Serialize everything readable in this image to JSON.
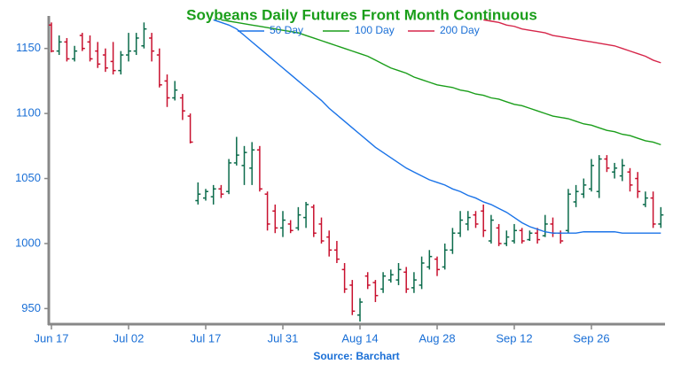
{
  "chart_data": {
    "type": "ohlc",
    "title": "Soybeans Daily Futures Front Month Continuous",
    "source": "Source: Barchart",
    "categories": [
      "Jun 17",
      null,
      null,
      null,
      null,
      null,
      null,
      null,
      null,
      null,
      "Jul 02",
      null,
      null,
      null,
      null,
      null,
      null,
      null,
      null,
      null,
      "Jul 17",
      null,
      null,
      null,
      null,
      null,
      null,
      null,
      null,
      null,
      "Jul 31",
      null,
      null,
      null,
      null,
      null,
      null,
      null,
      null,
      null,
      "Aug 14",
      null,
      null,
      null,
      null,
      null,
      null,
      null,
      null,
      null,
      "Aug 28",
      null,
      null,
      null,
      null,
      null,
      null,
      null,
      null,
      null,
      "Sep 12",
      null,
      null,
      null,
      null,
      null,
      null,
      null,
      null,
      null,
      "Sep 26",
      null,
      null,
      null,
      null,
      null,
      null,
      null,
      null,
      null
    ],
    "open": [
      1168,
      1148,
      1155,
      1142,
      1160,
      1155,
      1148,
      1145,
      1140,
      1133,
      1145,
      1148,
      1152,
      1158,
      1145,
      1125,
      1112,
      1112,
      1098,
      1033,
      1035,
      1036,
      1042,
      1040,
      1062,
      1060,
      1058,
      1072,
      1038,
      1025,
      1012,
      1015,
      1012,
      1020,
      1028,
      1015,
      1005,
      995,
      980,
      968,
      945,
      975,
      970,
      965,
      972,
      972,
      978,
      966,
      968,
      982,
      988,
      982,
      995,
      1008,
      1015,
      1022,
      1025,
      1002,
      1012,
      1000,
      1002,
      1010,
      1003,
      1008,
      1006,
      1015,
      1008,
      1010,
      1032,
      1038,
      1042,
      1040,
      1065,
      1055,
      1052,
      1055,
      1050,
      1030,
      1035,
      1015
    ],
    "high": [
      1170,
      1160,
      1158,
      1152,
      1162,
      1160,
      1155,
      1150,
      1155,
      1148,
      1162,
      1162,
      1170,
      1162,
      1150,
      1130,
      1125,
      1115,
      1100,
      1047,
      1042,
      1045,
      1045,
      1065,
      1082,
      1075,
      1078,
      1075,
      1040,
      1030,
      1025,
      1018,
      1028,
      1032,
      1030,
      1020,
      1010,
      1002,
      985,
      972,
      958,
      978,
      972,
      978,
      980,
      985,
      982,
      978,
      990,
      995,
      990,
      1000,
      1012,
      1025,
      1025,
      1025,
      1030,
      1022,
      1015,
      1010,
      1015,
      1012,
      1010,
      1012,
      1022,
      1020,
      1010,
      1042,
      1045,
      1050,
      1065,
      1068,
      1068,
      1062,
      1065,
      1058,
      1055,
      1040,
      1040,
      1028
    ],
    "low": [
      1147,
      1145,
      1140,
      1140,
      1148,
      1140,
      1135,
      1132,
      1130,
      1130,
      1140,
      1145,
      1150,
      1140,
      1120,
      1105,
      1110,
      1095,
      1077,
      1030,
      1033,
      1030,
      1035,
      1038,
      1060,
      1045,
      1045,
      1040,
      1010,
      1008,
      1005,
      1008,
      1010,
      1012,
      1005,
      1000,
      990,
      985,
      962,
      945,
      940,
      965,
      955,
      962,
      970,
      968,
      962,
      962,
      965,
      980,
      975,
      980,
      992,
      1005,
      1010,
      1012,
      1005,
      1000,
      998,
      998,
      1000,
      1000,
      1002,
      1000,
      1005,
      1005,
      1000,
      1008,
      1028,
      1035,
      1040,
      1035,
      1055,
      1050,
      1048,
      1040,
      1035,
      1028,
      1012,
      1012
    ],
    "close": [
      1148,
      1155,
      1142,
      1148,
      1150,
      1142,
      1138,
      1135,
      1133,
      1145,
      1148,
      1158,
      1165,
      1148,
      1122,
      1112,
      1118,
      1102,
      1078,
      1038,
      1040,
      1042,
      1038,
      1062,
      1068,
      1070,
      1072,
      1042,
      1015,
      1012,
      1018,
      1010,
      1022,
      1030,
      1008,
      1002,
      995,
      988,
      965,
      948,
      955,
      968,
      960,
      975,
      976,
      980,
      965,
      972,
      985,
      990,
      980,
      995,
      1008,
      1018,
      1020,
      1015,
      1010,
      1018,
      1000,
      1005,
      1010,
      1002,
      1008,
      1003,
      1015,
      1008,
      1002,
      1038,
      1040,
      1045,
      1060,
      1065,
      1058,
      1058,
      1060,
      1045,
      1040,
      1035,
      1015,
      1022
    ],
    "up_color": "#0b6b4b",
    "down_color": "#c8102e",
    "series": [
      {
        "name": "50 Day",
        "color": "#1a73e8",
        "values": [
          null,
          null,
          null,
          null,
          null,
          null,
          null,
          null,
          null,
          null,
          null,
          null,
          null,
          null,
          null,
          null,
          null,
          null,
          null,
          null,
          null,
          1172,
          1170,
          1168,
          1165,
          1160,
          1155,
          1150,
          1145,
          1140,
          1135,
          1130,
          1125,
          1120,
          1115,
          1110,
          1104,
          1099,
          1094,
          1089,
          1084,
          1079,
          1074,
          1070,
          1066,
          1062,
          1058,
          1055,
          1052,
          1049,
          1047,
          1045,
          1042,
          1040,
          1037,
          1035,
          1032,
          1030,
          1027,
          1024,
          1020,
          1016,
          1013,
          1011,
          1009,
          1008,
          1008,
          1008,
          1008,
          1009,
          1009,
          1009,
          1009,
          1009,
          1008,
          1008,
          1008,
          1008,
          1008,
          1008
        ]
      },
      {
        "name": "100 Day",
        "color": "#1a9e1a",
        "values": [
          null,
          null,
          null,
          null,
          null,
          null,
          null,
          null,
          null,
          null,
          null,
          null,
          null,
          null,
          null,
          null,
          null,
          null,
          null,
          null,
          null,
          null,
          1172,
          1171,
          1170,
          1169,
          1168,
          1167,
          1166,
          1165,
          1164,
          1163,
          1162,
          1160,
          1158,
          1156,
          1154,
          1152,
          1150,
          1148,
          1146,
          1144,
          1141,
          1138,
          1135,
          1133,
          1131,
          1128,
          1126,
          1124,
          1122,
          1121,
          1120,
          1118,
          1117,
          1115,
          1114,
          1112,
          1111,
          1109,
          1107,
          1106,
          1104,
          1102,
          1100,
          1098,
          1097,
          1096,
          1094,
          1092,
          1091,
          1089,
          1087,
          1086,
          1084,
          1083,
          1081,
          1079,
          1078,
          1076
        ]
      },
      {
        "name": "200 Day",
        "color": "#d6264a",
        "values": [
          null,
          null,
          null,
          null,
          null,
          null,
          null,
          null,
          null,
          null,
          null,
          null,
          null,
          null,
          null,
          null,
          null,
          null,
          null,
          null,
          null,
          null,
          null,
          null,
          null,
          null,
          null,
          null,
          null,
          null,
          null,
          null,
          null,
          null,
          null,
          null,
          null,
          null,
          null,
          null,
          null,
          null,
          null,
          null,
          null,
          null,
          null,
          null,
          null,
          null,
          null,
          null,
          null,
          null,
          null,
          null,
          1172,
          1171,
          1170,
          1168,
          1167,
          1165,
          1164,
          1163,
          1162,
          1160,
          1159,
          1158,
          1157,
          1156,
          1155,
          1154,
          1153,
          1152,
          1150,
          1148,
          1146,
          1144,
          1141,
          1139
        ]
      }
    ],
    "ylim": [
      938,
      1175
    ],
    "yticks": [
      950,
      1000,
      1050,
      1100,
      1150
    ]
  }
}
